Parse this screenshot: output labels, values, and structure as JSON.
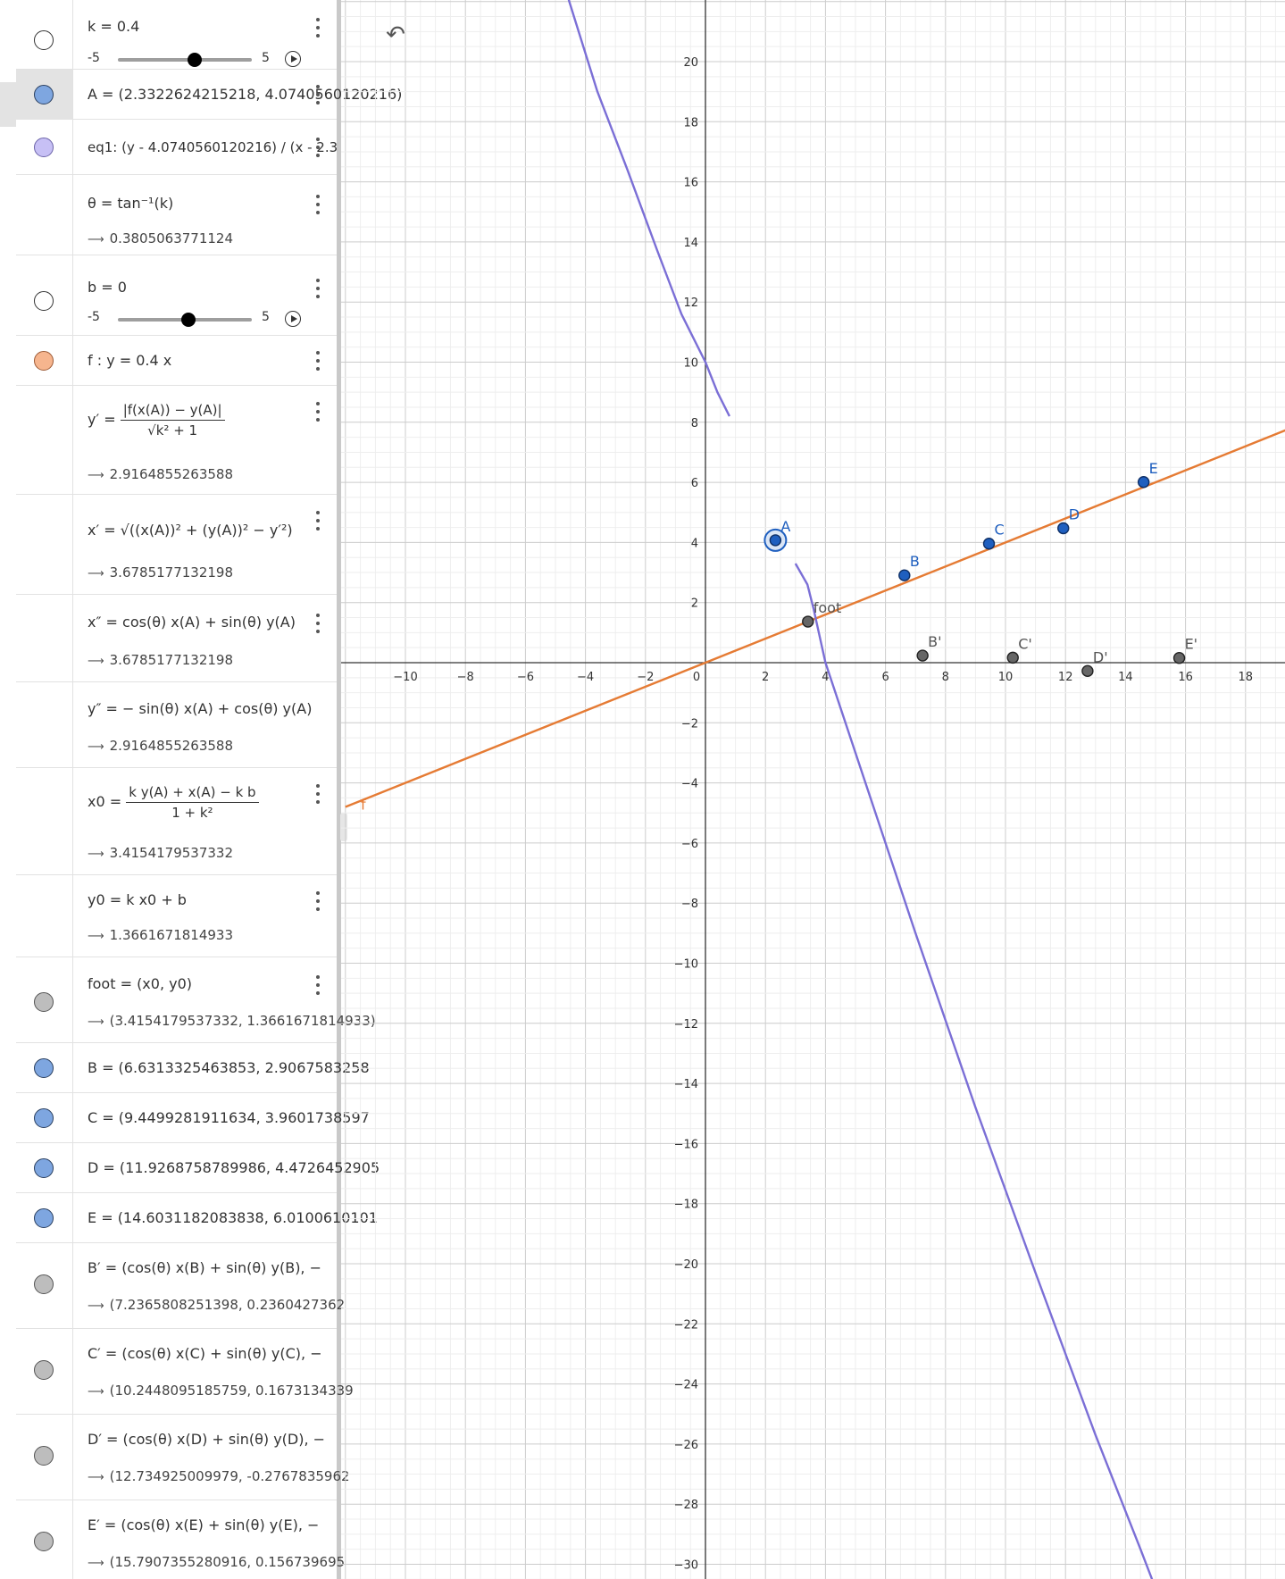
{
  "algebra": {
    "k": {
      "label": "k = 0.4",
      "min": "-5",
      "max": "5",
      "value": 0.4
    },
    "A": {
      "label": "A = (2.3322624215218, 4.0740560120216)"
    },
    "eq1": {
      "label": "eq1: (y - 4.0740560120216) / (x - 2.3"
    },
    "theta": {
      "label": "θ = tan⁻¹(k)",
      "result": "0.3805063771124"
    },
    "b": {
      "label": "b = 0",
      "min": "-5",
      "max": "5",
      "value": 0
    },
    "f": {
      "label": "f : y = 0.4 x"
    },
    "yprime": {
      "lhs": "y′ =",
      "num": "|f(x(A)) − y(A)|",
      "den": "√k² + 1",
      "result": "2.9164855263588"
    },
    "xprime": {
      "label": "x′ = √((x(A))² + (y(A))² − y′²)",
      "result": "3.6785177132198"
    },
    "xdprime": {
      "label": "x″ = cos(θ) x(A) + sin(θ) y(A)",
      "result": "3.6785177132198"
    },
    "ydprime": {
      "label": "y″ = − sin(θ) x(A) + cos(θ) y(A)",
      "result": "2.9164855263588"
    },
    "x0": {
      "lhs": "x0 =",
      "num": "k y(A) + x(A) − k b",
      "den": "1 + k²",
      "result": "3.4154179537332"
    },
    "y0": {
      "label": "y0 = k x0 + b",
      "result": "1.3661671814933"
    },
    "foot": {
      "label": "foot = (x0, y0)",
      "result": "(3.4154179537332, 1.3661671814933)"
    },
    "B": {
      "label": "B = (6.6313325463853, 2.9067583258"
    },
    "C": {
      "label": "C = (9.4499281911634, 3.9601738597"
    },
    "D": {
      "label": "D = (11.9268758789986, 4.4726452905"
    },
    "E": {
      "label": "E = (14.6031182083838, 6.0100610101"
    },
    "Bp": {
      "label": "B′ = (cos(θ) x(B) + sin(θ) y(B), −",
      "result": "(7.2365808251398, 0.2360427362"
    },
    "Cp": {
      "label": "C′ = (cos(θ) x(C) + sin(θ) y(C), −",
      "result": "(10.2448095185759, 0.1673134339"
    },
    "Dp": {
      "label": "D′ = (cos(θ) x(D) + sin(θ) y(D), −",
      "result": "(12.734925009979, -0.2767835962"
    },
    "Ep": {
      "label": "E′ = (cos(θ) x(E) + sin(θ) y(E), −",
      "result": "(15.7907355280916, 0.156739695"
    }
  },
  "graph": {
    "x_ticks": [
      "−10",
      "−8",
      "−6",
      "−4",
      "−2",
      "0",
      "2",
      "4",
      "6",
      "8",
      "10",
      "12",
      "14",
      "16",
      "18"
    ],
    "y_ticks": [
      "20",
      "18",
      "16",
      "14",
      "12",
      "10",
      "8",
      "6",
      "4",
      "2",
      "−2",
      "−4",
      "−6",
      "−8",
      "−10",
      "−12",
      "−14",
      "−16",
      "−18",
      "−20",
      "−22",
      "−24",
      "−26",
      "−28",
      "−30"
    ],
    "line_label": "f",
    "colors": {
      "line": "#e57b34",
      "curve": "#7b6fd6",
      "point_blue": "#1f5fbf",
      "point_gray": "#555555",
      "grid_minor": "#eeeeee",
      "grid_major": "#cccccc"
    },
    "points": [
      {
        "name": "A",
        "x": 2.3322624215218,
        "y": 4.0740560120216,
        "kind": "blue-big"
      },
      {
        "name": "B",
        "x": 6.6313325463853,
        "y": 2.9067583258,
        "kind": "blue"
      },
      {
        "name": "C",
        "x": 9.4499281911634,
        "y": 3.9601738597,
        "kind": "blue"
      },
      {
        "name": "D",
        "x": 11.9268758789986,
        "y": 4.4726452905,
        "kind": "blue"
      },
      {
        "name": "E",
        "x": 14.6031182083838,
        "y": 6.0100610101,
        "kind": "blue"
      },
      {
        "name": "foot",
        "x": 3.4154179537332,
        "y": 1.3661671814933,
        "kind": "gray"
      },
      {
        "name": "B'",
        "x": 7.2365808251398,
        "y": 0.2360427362,
        "kind": "gray"
      },
      {
        "name": "C'",
        "x": 10.2448095185759,
        "y": 0.1673134339,
        "kind": "gray"
      },
      {
        "name": "D'",
        "x": 12.734925009979,
        "y": -0.2767835962,
        "kind": "gray"
      },
      {
        "name": "E'",
        "x": 15.7907355280916,
        "y": 0.156739695,
        "kind": "gray"
      }
    ],
    "curve_upper": [
      [
        -4.6,
        22.2
      ],
      [
        -3.6,
        19.0
      ],
      [
        -2.6,
        16.4
      ],
      [
        -1.6,
        13.7
      ],
      [
        -0.8,
        11.6
      ],
      [
        0,
        10.0
      ],
      [
        0.4,
        9.0
      ],
      [
        0.8,
        8.2
      ]
    ],
    "curve_lower": [
      [
        3.0,
        3.3
      ],
      [
        3.4,
        2.6
      ],
      [
        3.6,
        1.8
      ],
      [
        3.8,
        0.9
      ],
      [
        4.0,
        0
      ],
      [
        4.5,
        -1.5
      ],
      [
        5.5,
        -4.5
      ],
      [
        7,
        -9
      ],
      [
        9,
        -14.8
      ],
      [
        11,
        -20.3
      ],
      [
        13,
        -25.7
      ],
      [
        14.5,
        -29.5
      ],
      [
        15.0,
        -30.8
      ]
    ],
    "line_slope": 0.4
  }
}
